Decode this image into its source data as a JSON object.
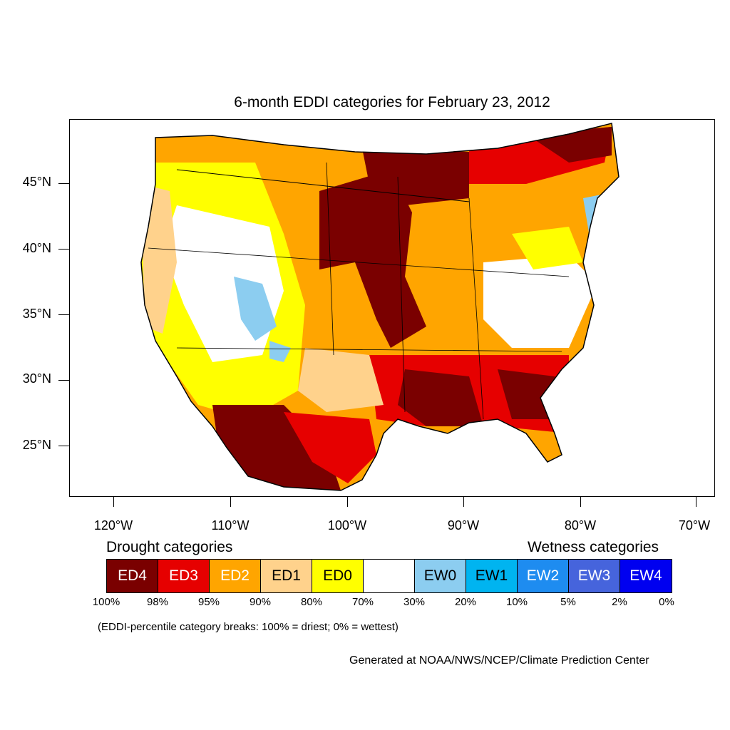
{
  "title": "6-month EDDI categories for February 23, 2012",
  "lat_labels": [
    "45°N",
    "40°N",
    "35°N",
    "30°N",
    "25°N"
  ],
  "lon_labels": [
    "120°W",
    "110°W",
    "100°W",
    "90°W",
    "80°W",
    "70°W"
  ],
  "legend": {
    "drought_heading": "Drought categories",
    "wetness_heading": "Wetness categories",
    "categories": [
      {
        "label": "ED4",
        "color": "#7a0000",
        "text_color": "#ffffff"
      },
      {
        "label": "ED3",
        "color": "#e60000",
        "text_color": "#ffffff"
      },
      {
        "label": "ED2",
        "color": "#ffa500",
        "text_color": "#ffffff"
      },
      {
        "label": "ED1",
        "color": "#ffd28c",
        "text_color": "#000000"
      },
      {
        "label": "ED0",
        "color": "#ffff00",
        "text_color": "#000000"
      },
      {
        "label": "",
        "color": "#ffffff",
        "text_color": "#000000"
      },
      {
        "label": "EW0",
        "color": "#8ccdf0",
        "text_color": "#000000"
      },
      {
        "label": "EW1",
        "color": "#00b4f0",
        "text_color": "#000000"
      },
      {
        "label": "EW2",
        "color": "#1e8cf0",
        "text_color": "#ffffff"
      },
      {
        "label": "EW3",
        "color": "#4664dc",
        "text_color": "#ffffff"
      },
      {
        "label": "EW4",
        "color": "#0000f0",
        "text_color": "#ffffff"
      }
    ],
    "percent_breaks": [
      "100%",
      "98%",
      "95%",
      "90%",
      "80%",
      "70%",
      "30%",
      "20%",
      "10%",
      "5%",
      "2%",
      "0%"
    ]
  },
  "note": "(EDDI-percentile category breaks: 100% = driest; 0% = wettest)",
  "credit": "Generated at NOAA/NWS/NCEP/Climate Prediction Center"
}
